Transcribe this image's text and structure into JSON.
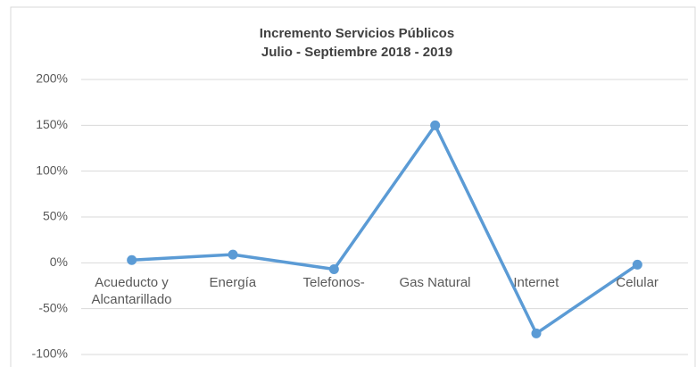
{
  "chart_data": {
    "type": "line",
    "title": "Incremento Servicios Públicos",
    "subtitle": "Julio - Septiembre 2018 - 2019",
    "categories": [
      "Acueducto y Alcantarillado",
      "Energía",
      "Telefonos-",
      "Gas Natural",
      "Internet",
      "Celular"
    ],
    "series": [
      {
        "name": "Incremento",
        "color": "#5b9bd5",
        "values": [
          3,
          9,
          -7,
          150,
          -77,
          -2
        ]
      }
    ],
    "ylim": [
      -100,
      200
    ],
    "yticks": [
      {
        "value": -100,
        "label": "-100%"
      },
      {
        "value": -50,
        "label": "-50%"
      },
      {
        "value": 0,
        "label": "0%"
      },
      {
        "value": 50,
        "label": "50%"
      },
      {
        "value": 100,
        "label": "100%"
      },
      {
        "value": 150,
        "label": "150%"
      },
      {
        "value": 200,
        "label": "200%"
      }
    ],
    "grid": true
  }
}
